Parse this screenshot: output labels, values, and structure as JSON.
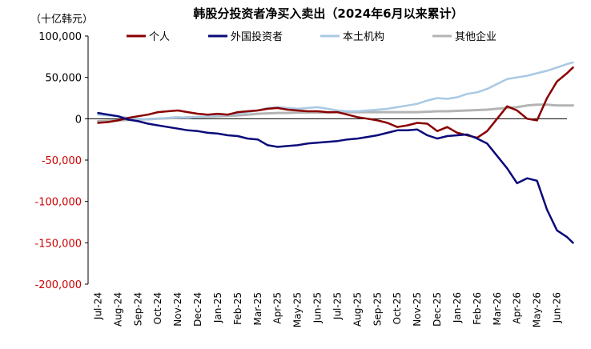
{
  "chart_data": {
    "type": "line",
    "title": "韩股分投资者净买入卖出（2024年6月以来累计）",
    "unit_label": "（十亿韩元）",
    "ylim": [
      -200000,
      100000
    ],
    "yticks": [
      100000,
      50000,
      0,
      -50000,
      -100000,
      -150000,
      -200000
    ],
    "ytick_labels": [
      "100,000",
      "50,000",
      "0",
      "-50,000",
      "-100,000",
      "-150,000",
      "-200,000"
    ],
    "ytick_colors": [
      "#000000",
      "#000000",
      "#000000",
      "#cc0000",
      "#cc0000",
      "#cc0000",
      "#cc0000"
    ],
    "x_labels": [
      "Jul-24",
      "Aug-24",
      "Sep-24",
      "Oct-24",
      "Nov-24",
      "Dec-24",
      "Jan-25",
      "Feb-25",
      "Mar-25",
      "Apr-25",
      "May-25",
      "Jun-25",
      "Jul-25",
      "Aug-25",
      "Sep-25",
      "Oct-25",
      "Nov-25",
      "Dec-25",
      "Jan-26",
      "Feb-26",
      "Mar-26",
      "Apr-26",
      "May-26",
      "Jun-26"
    ],
    "x_month_index": [
      0,
      1,
      2,
      3,
      4,
      5,
      6,
      7,
      8,
      9,
      10,
      11,
      12,
      13,
      14,
      15,
      16,
      17,
      18,
      19,
      20,
      21,
      22,
      23
    ],
    "legend_position": "top",
    "series": [
      {
        "name": "个人",
        "color": "#8b0000",
        "x": [
          0,
          0.5,
          1,
          1.5,
          2,
          2.5,
          3,
          3.5,
          4,
          4.5,
          5,
          5.5,
          6,
          6.5,
          7,
          7.5,
          8,
          8.5,
          9,
          9.5,
          10,
          10.5,
          11,
          11.5,
          12,
          12.5,
          13,
          13.5,
          14,
          14.5,
          15,
          15.5,
          16,
          16.5,
          17,
          17.5,
          18,
          18.5,
          19,
          19.5,
          20,
          20.5,
          21,
          21.5,
          22,
          22.5,
          23,
          23.5,
          23.8
        ],
        "y": [
          -5000,
          -4000,
          -2000,
          1000,
          3000,
          5000,
          8000,
          9000,
          10000,
          8000,
          6000,
          5000,
          6000,
          5000,
          8000,
          9000,
          10000,
          12000,
          13000,
          11000,
          10000,
          9000,
          9000,
          8000,
          8000,
          5000,
          2000,
          0,
          -2000,
          -5000,
          -10000,
          -8000,
          -5000,
          -6000,
          -15000,
          -10000,
          -17000,
          -20000,
          -23000,
          -15000,
          0,
          15000,
          10000,
          0,
          -2000,
          25000,
          45000,
          55000,
          62000
        ]
      },
      {
        "name": "外国投资者",
        "color": "#0a0a7a",
        "x": [
          0,
          0.5,
          1,
          1.5,
          2,
          2.5,
          3,
          3.5,
          4,
          4.5,
          5,
          5.5,
          6,
          6.5,
          7,
          7.5,
          8,
          8.5,
          9,
          9.5,
          10,
          10.5,
          11,
          11.5,
          12,
          12.5,
          13,
          13.5,
          14,
          14.5,
          15,
          15.5,
          16,
          16.5,
          17,
          17.5,
          18,
          18.5,
          19,
          19.5,
          20,
          20.5,
          21,
          21.5,
          22,
          22.5,
          23,
          23.5,
          23.8
        ],
        "y": [
          7000,
          5000,
          3000,
          -1000,
          -3000,
          -6000,
          -8000,
          -10000,
          -12000,
          -14000,
          -15000,
          -17000,
          -18000,
          -20000,
          -21000,
          -24000,
          -25000,
          -32000,
          -34000,
          -33000,
          -32000,
          -30000,
          -29000,
          -28000,
          -27000,
          -25000,
          -24000,
          -22000,
          -20000,
          -17000,
          -14000,
          -14000,
          -13000,
          -20000,
          -24000,
          -21000,
          -20000,
          -19000,
          -24000,
          -30000,
          -45000,
          -60000,
          -78000,
          -72000,
          -75000,
          -110000,
          -135000,
          -143000,
          -150000
        ]
      },
      {
        "name": "本土机构",
        "color": "#a9c9e4",
        "x": [
          0,
          0.5,
          1,
          1.5,
          2,
          2.5,
          3,
          3.5,
          4,
          4.5,
          5,
          5.5,
          6,
          6.5,
          7,
          7.5,
          8,
          8.5,
          9,
          9.5,
          10,
          10.5,
          11,
          11.5,
          12,
          12.5,
          13,
          13.5,
          14,
          14.5,
          15,
          15.5,
          16,
          16.5,
          17,
          17.5,
          18,
          18.5,
          19,
          19.5,
          20,
          20.5,
          21,
          21.5,
          22,
          22.5,
          23,
          23.5,
          23.8
        ],
        "y": [
          5000,
          4000,
          3000,
          1000,
          0,
          -1000,
          0,
          1000,
          2000,
          1000,
          2000,
          3000,
          4000,
          5000,
          6000,
          8000,
          10000,
          13000,
          14000,
          13000,
          12000,
          13000,
          14000,
          12000,
          10000,
          9000,
          9000,
          10000,
          11000,
          12000,
          14000,
          16000,
          18000,
          22000,
          25000,
          24000,
          26000,
          30000,
          32000,
          36000,
          42000,
          48000,
          50000,
          52000,
          55000,
          58000,
          62000,
          66000,
          68000
        ]
      },
      {
        "name": "其他企业",
        "color": "#b4b4b4",
        "x": [
          0,
          0.5,
          1,
          1.5,
          2,
          2.5,
          3,
          3.5,
          4,
          4.5,
          5,
          5.5,
          6,
          6.5,
          7,
          7.5,
          8,
          8.5,
          9,
          9.5,
          10,
          10.5,
          11,
          11.5,
          12,
          12.5,
          13,
          13.5,
          14,
          14.5,
          15,
          15.5,
          16,
          16.5,
          17,
          17.5,
          18,
          18.5,
          19,
          19.5,
          20,
          20.5,
          21,
          21.5,
          22,
          22.5,
          23,
          23.5,
          23.8
        ],
        "y": [
          -3000,
          -2500,
          -2000,
          -1500,
          -1000,
          -500,
          0,
          500,
          1000,
          1500,
          2000,
          2500,
          3000,
          3500,
          4000,
          5000,
          6000,
          6500,
          7000,
          7000,
          7500,
          7500,
          7500,
          7500,
          8000,
          8000,
          8000,
          8000,
          8000,
          8000,
          8000,
          8000,
          8000,
          8500,
          9000,
          9000,
          9500,
          10000,
          10500,
          11000,
          12000,
          13000,
          14000,
          16000,
          17000,
          17000,
          16000,
          16000,
          16000
        ]
      }
    ]
  }
}
